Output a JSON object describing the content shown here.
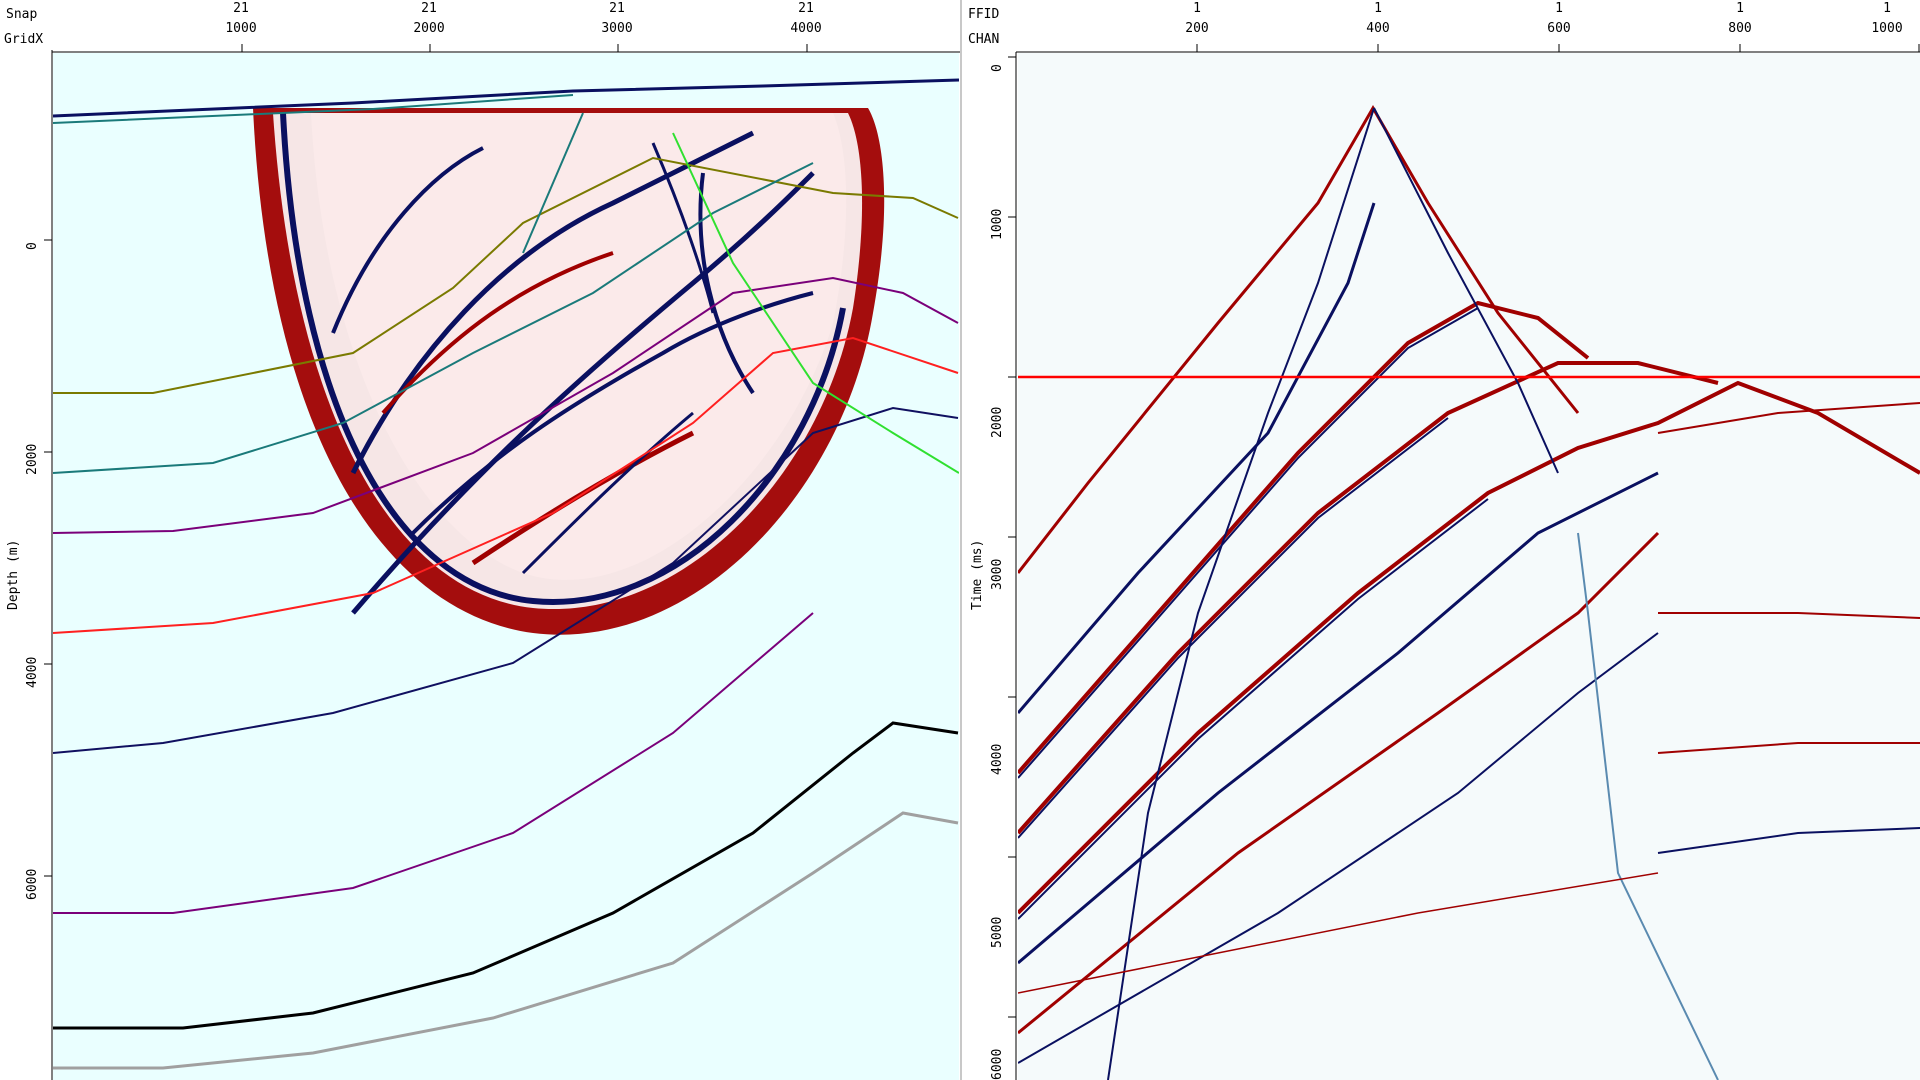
{
  "left": {
    "header_labels": [
      "Snap",
      "GridX"
    ],
    "top_ticks": [
      {
        "snap": "21",
        "gridx": "1000"
      },
      {
        "snap": "21",
        "gridx": "2000"
      },
      {
        "snap": "21",
        "gridx": "3000"
      },
      {
        "snap": "21",
        "gridx": "4000"
      }
    ],
    "y_axis_title": "Depth (m)",
    "y_ticks": [
      "0",
      "2000",
      "4000",
      "6000"
    ]
  },
  "right": {
    "header_labels": [
      "FFID",
      "CHAN"
    ],
    "top_ticks": [
      {
        "ffid": "1",
        "chan": "200"
      },
      {
        "ffid": "1",
        "chan": "400"
      },
      {
        "ffid": "1",
        "chan": "600"
      },
      {
        "ffid": "1",
        "chan": "800"
      },
      {
        "ffid": "1",
        "chan": "1000"
      }
    ],
    "y_axis_title": "Time (ms)",
    "y_ticks": [
      "0",
      "1000",
      "2000",
      "3000",
      "4000",
      "5000",
      "6000"
    ],
    "marker_time_ms": 2000
  },
  "colors": {
    "background": "#eaffff",
    "wave_red": "#a00000",
    "wave_blue": "#0a1060",
    "time_marker": "#ff0000"
  }
}
